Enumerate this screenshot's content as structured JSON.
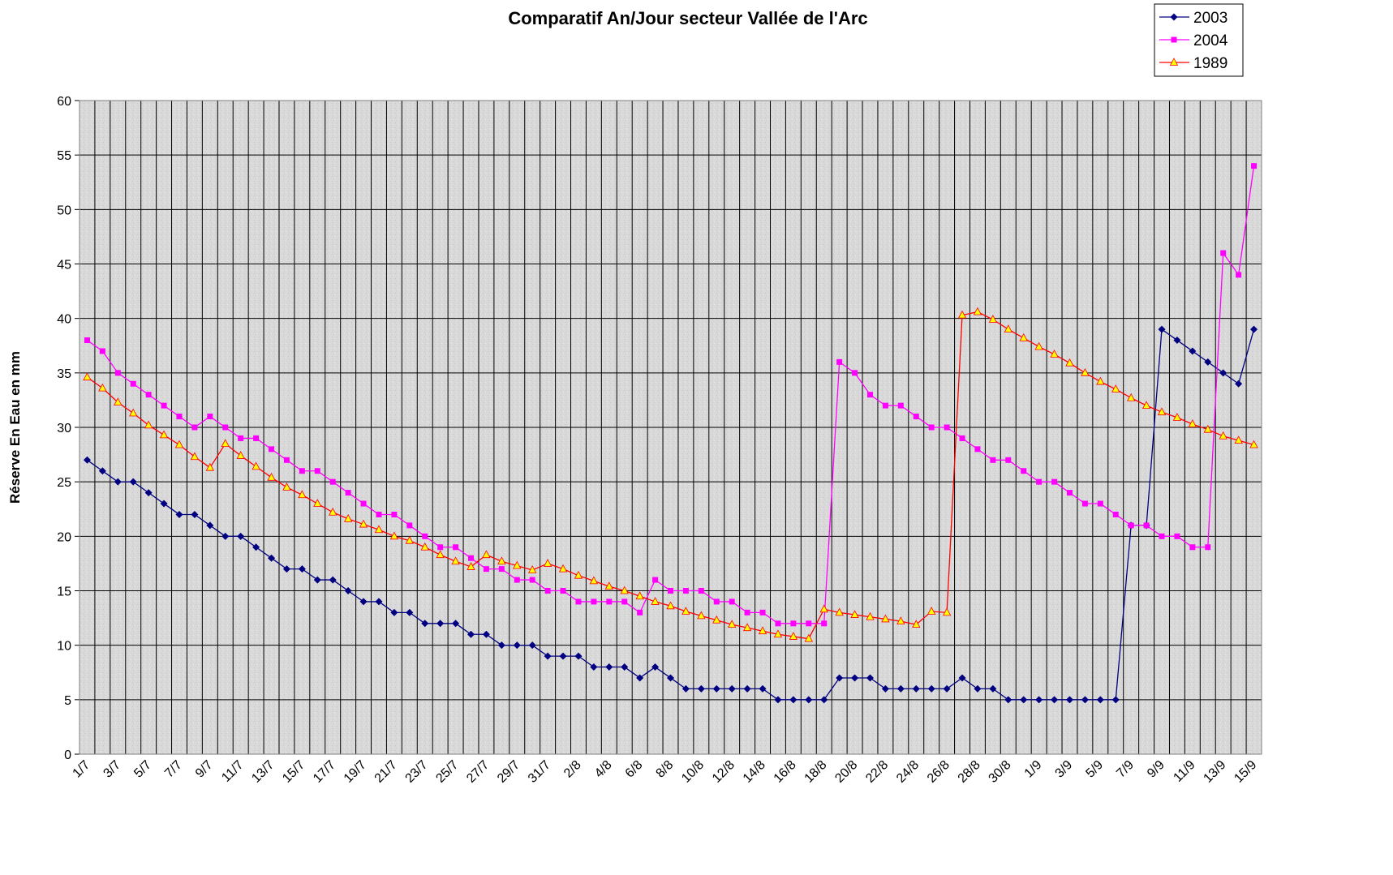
{
  "chart_data": {
    "type": "line",
    "title": "Comparatif An/Jour  secteur Vallée de l'Arc",
    "y_label": "Réserve En Eau en mm",
    "categories": [
      "1/7",
      null,
      "3/7",
      null,
      "5/7",
      null,
      "7/7",
      null,
      "9/7",
      null,
      "11/7",
      null,
      "13/7",
      null,
      "15/7",
      null,
      "17/7",
      null,
      "19/7",
      null,
      "21/7",
      null,
      "23/7",
      null,
      "25/7",
      null,
      "27/7",
      null,
      "29/7",
      null,
      "31/7",
      null,
      "2/8",
      null,
      "4/8",
      null,
      "6/8",
      null,
      "8/8",
      null,
      "10/8",
      null,
      "12/8",
      null,
      "14/8",
      null,
      "16/8",
      null,
      "18/8",
      null,
      "20/8",
      null,
      "22/8",
      null,
      "24/8",
      null,
      "26/8",
      null,
      "28/8",
      null,
      "30/8",
      null,
      "1/9",
      null,
      "3/9",
      null,
      "5/9",
      null,
      "7/9",
      null,
      "9/9",
      null,
      "11/9",
      null,
      "13/9",
      null,
      "15/9"
    ],
    "series": [
      {
        "name": "2003",
        "color": "#000080",
        "marker": "diamond",
        "values": [
          27,
          26,
          25,
          25,
          24,
          23,
          22,
          22,
          21,
          20,
          20,
          19,
          18,
          17,
          17,
          16,
          16,
          15,
          14,
          14,
          13,
          13,
          12,
          12,
          12,
          11,
          11,
          10,
          10,
          10,
          9,
          9,
          9,
          8,
          8,
          8,
          7,
          8,
          7,
          6,
          6,
          6,
          6,
          6,
          6,
          5,
          5,
          5,
          5,
          7,
          7,
          7,
          6,
          6,
          6,
          6,
          6,
          7,
          6,
          6,
          5,
          5,
          5,
          5,
          5,
          5,
          5,
          5,
          21,
          21,
          39,
          38,
          37,
          36,
          35,
          34,
          39
        ]
      },
      {
        "name": "2004",
        "color": "#ff00ff",
        "marker": "square",
        "values": [
          38,
          37,
          35,
          34,
          33,
          32,
          31,
          30,
          31,
          30,
          29,
          29,
          28,
          27,
          26,
          26,
          25,
          24,
          23,
          22,
          22,
          21,
          20,
          19,
          19,
          18,
          17,
          17,
          16,
          16,
          15,
          15,
          14,
          14,
          14,
          14,
          13,
          16,
          15,
          15,
          15,
          14,
          14,
          13,
          13,
          12,
          12,
          12,
          12,
          36,
          35,
          33,
          32,
          32,
          31,
          30,
          30,
          29,
          28,
          27,
          27,
          26,
          25,
          25,
          24,
          23,
          23,
          22,
          21,
          21,
          20,
          20,
          19,
          19,
          46,
          44,
          54
        ]
      },
      {
        "name": "1989",
        "color": "#ff0000",
        "marker": "triangle",
        "marker_color": "#ffff00",
        "values": [
          34.6,
          33.6,
          32.3,
          31.3,
          30.2,
          29.3,
          28.4,
          27.3,
          26.3,
          28.5,
          27.4,
          26.4,
          25.4,
          24.5,
          23.8,
          23.0,
          22.2,
          21.6,
          21.1,
          20.6,
          20.0,
          19.6,
          19.0,
          18.3,
          17.7,
          17.2,
          18.3,
          17.7,
          17.3,
          16.9,
          17.5,
          17.0,
          16.4,
          15.9,
          15.4,
          15.0,
          14.5,
          14.0,
          13.6,
          13.1,
          12.7,
          12.3,
          11.9,
          11.6,
          11.3,
          11.0,
          10.8,
          10.6,
          13.3,
          13.0,
          12.8,
          12.6,
          12.4,
          12.2,
          11.9,
          13.1,
          13.0,
          40.3,
          40.6,
          39.9,
          39.0,
          38.2,
          37.4,
          36.7,
          35.9,
          35.0,
          34.2,
          33.5,
          32.7,
          32.0,
          31.4,
          30.9,
          30.3,
          29.8,
          29.2,
          28.8,
          28.4
        ]
      }
    ],
    "ylim": [
      0,
      60
    ],
    "yticks": [
      0,
      5,
      10,
      15,
      20,
      25,
      30,
      35,
      40,
      45,
      50,
      55,
      60
    ],
    "grid": true,
    "legend": "top-right"
  }
}
